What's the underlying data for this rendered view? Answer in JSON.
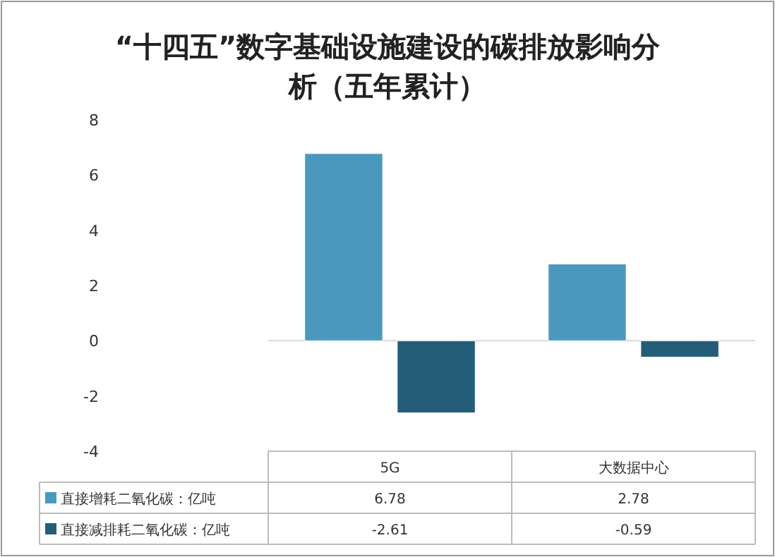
{
  "chart_data": {
    "type": "bar",
    "title": "“十四五”数字基础设施建设的碳排放影响分析（五年累计）",
    "categories": [
      "5G",
      "大数据中心"
    ],
    "series": [
      {
        "name": "直接增耗二氧化碳：亿吨",
        "color": "#4a98bd",
        "values": [
          6.78,
          2.78
        ]
      },
      {
        "name": "直接减排耗二氧化碳：亿吨",
        "color": "#235d78",
        "values": [
          -2.61,
          -0.59
        ]
      }
    ],
    "ylim": [
      -4,
      8
    ],
    "yticks": [
      -4,
      -2,
      0,
      2,
      4,
      6,
      8
    ],
    "data_labels": true,
    "legend": "bottom"
  }
}
